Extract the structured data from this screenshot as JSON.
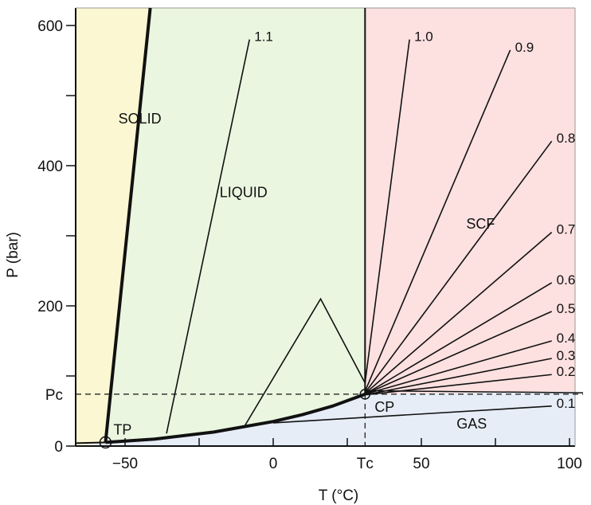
{
  "chart_data": {
    "type": "line",
    "title": "",
    "xlabel": "T (°C)",
    "ylabel": "P (bar)",
    "xlim": [
      -60,
      100
    ],
    "ylim": [
      0,
      620
    ],
    "x_ticks": [
      -50,
      0,
      50,
      100
    ],
    "y_ticks": [
      0,
      200,
      400,
      600
    ],
    "critical_temperature_label": "Tᴄ",
    "critical_pressure_label": "Pᴄ",
    "critical_point": {
      "label": "CP",
      "T": 31,
      "P": 74
    },
    "triple_point": {
      "label": "TP",
      "T": -56.6,
      "P": 5.2
    },
    "regions": [
      {
        "name": "SOLID",
        "color": "#fbf7d2",
        "label_at": {
          "T": -45,
          "P": 460
        }
      },
      {
        "name": "LIQUID",
        "color": "#eaf6df",
        "label_at": {
          "T": -10,
          "P": 355
        }
      },
      {
        "name": "SCF",
        "color": "#fde0e0",
        "label_at": {
          "T": 70,
          "P": 310
        }
      },
      {
        "name": "GAS",
        "color": "#e6edf6",
        "label_at": {
          "T": 67,
          "P": 25
        }
      }
    ],
    "phase_boundaries": [
      {
        "name": "melting",
        "points": [
          [
            -56.6,
            5.2
          ],
          [
            -41.5,
            620
          ]
        ]
      },
      {
        "name": "vaporization",
        "points": [
          [
            -56.6,
            5.2
          ],
          [
            -40,
            10
          ],
          [
            -20,
            20
          ],
          [
            0,
            35
          ],
          [
            10,
            45
          ],
          [
            20,
            57
          ],
          [
            31,
            74
          ]
        ]
      },
      {
        "name": "sublimation",
        "points": [
          [
            -60,
            4.1
          ],
          [
            -56.6,
            5.2
          ]
        ]
      },
      {
        "name": "critical_isotherm",
        "points": [
          [
            31,
            74
          ],
          [
            31,
            620
          ]
        ]
      }
    ],
    "series": [
      {
        "name": "1.1",
        "points": [
          [
            -36,
            18
          ],
          [
            -8,
            580
          ]
        ]
      },
      {
        "name": "1.0",
        "points": [
          [
            -10,
            26
          ],
          [
            16,
            210
          ],
          [
            31,
            90
          ],
          [
            46,
            580
          ]
        ]
      },
      {
        "name": "0.9",
        "points": [
          [
            31,
            78
          ],
          [
            80,
            565
          ]
        ]
      },
      {
        "name": "0.8",
        "points": [
          [
            31,
            76
          ],
          [
            94,
            435
          ]
        ]
      },
      {
        "name": "0.7",
        "points": [
          [
            31,
            75
          ],
          [
            94,
            305
          ]
        ]
      },
      {
        "name": "0.6",
        "points": [
          [
            31,
            74
          ],
          [
            94,
            233
          ]
        ]
      },
      {
        "name": "0.5",
        "points": [
          [
            31,
            74
          ],
          [
            94,
            192
          ]
        ]
      },
      {
        "name": "0.4",
        "points": [
          [
            31,
            74
          ],
          [
            94,
            150
          ]
        ]
      },
      {
        "name": "0.3",
        "points": [
          [
            31,
            73
          ],
          [
            94,
            125
          ]
        ]
      },
      {
        "name": "0.2",
        "points": [
          [
            31,
            73
          ],
          [
            94,
            102
          ]
        ]
      },
      {
        "name": "0.1",
        "points": [
          [
            0,
            33
          ],
          [
            94,
            57
          ]
        ]
      }
    ]
  }
}
